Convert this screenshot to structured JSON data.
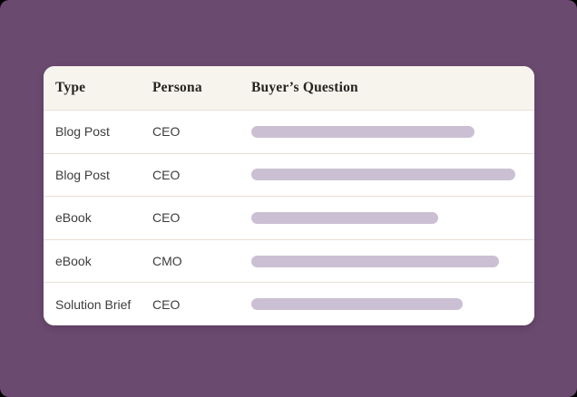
{
  "page": {
    "background_color": "#6b4a70"
  },
  "table": {
    "columns": [
      {
        "label": "Type"
      },
      {
        "label": "Persona"
      },
      {
        "label": "Buyer’s Question"
      }
    ],
    "rows": [
      {
        "type": "Blog Post",
        "persona": "CEO",
        "question_placeholder_width": 246
      },
      {
        "type": "Blog Post",
        "persona": "CEO",
        "question_placeholder_width": 291
      },
      {
        "type": "eBook",
        "persona": "CEO",
        "question_placeholder_width": 206
      },
      {
        "type": "eBook",
        "persona": "CMO",
        "question_placeholder_width": 273
      },
      {
        "type": "Solution Brief",
        "persona": "CEO",
        "question_placeholder_width": 233
      }
    ],
    "placeholder_bar_color": "#cbc0d3"
  }
}
